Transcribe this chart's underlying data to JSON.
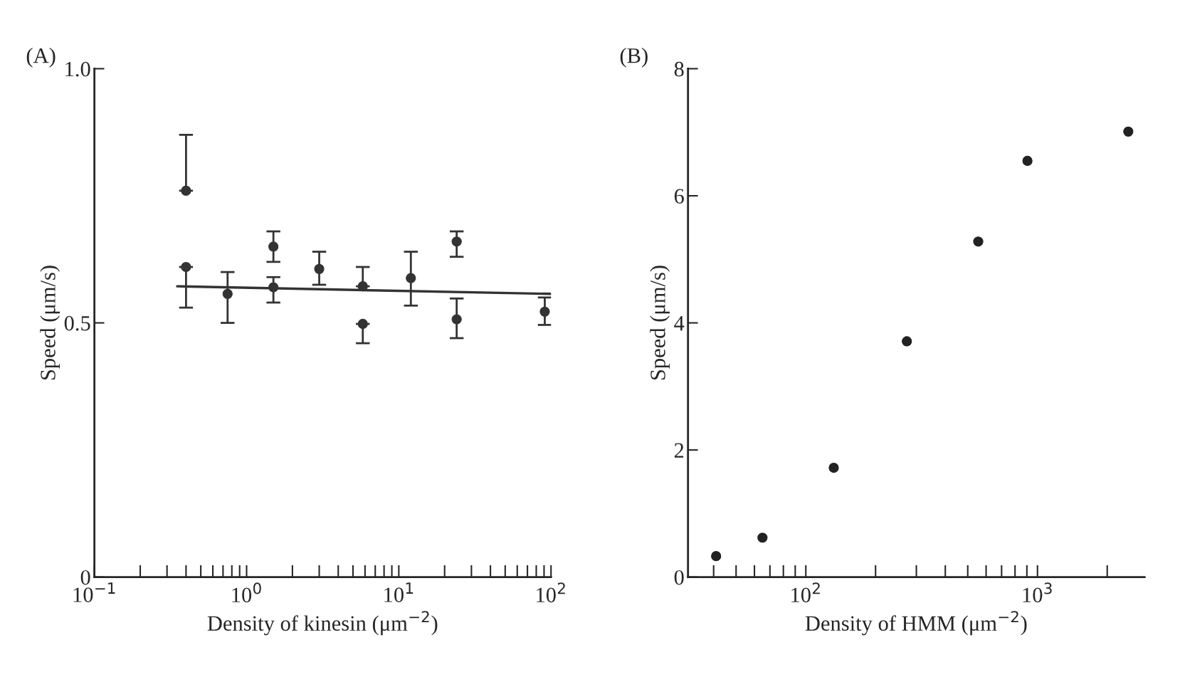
{
  "chart_data": [
    {
      "type": "scatter",
      "title": "(A)",
      "xlabel": "Density of kinesin (μm$^{−2}$)",
      "ylabel": "Speed (μm/s)",
      "log": "x",
      "grid": false,
      "xlim": [
        0.1,
        100
      ],
      "ylim": [
        0,
        1.0
      ],
      "xticks": [
        {
          "value": 0.1,
          "label": "10$^{−1}$"
        },
        {
          "value": 1,
          "label": "10$^{0}$"
        },
        {
          "value": 10,
          "label": "10$^{1}$"
        },
        {
          "value": 100,
          "label": "10$^{2}$"
        }
      ],
      "yticks": [
        0,
        0.5,
        {
          "value": 1.0,
          "label": "1.0"
        }
      ],
      "series": [
        {
          "type": "scatter",
          "marker": "circle",
          "color": "#333333",
          "x": [
            0.4,
            0.4,
            0.75,
            1.5,
            1.5,
            3.0,
            5.8,
            5.8,
            12,
            24,
            24,
            91
          ],
          "values": [
            0.76,
            0.61,
            0.557,
            0.65,
            0.57,
            0.606,
            0.572,
            0.498,
            0.588,
            0.66,
            0.507,
            0.522
          ],
          "errors": [
            [
              0.76,
              0.87
            ],
            [
              0.53,
              0.61
            ],
            [
              0.5,
              0.6
            ],
            [
              0.62,
              0.68
            ],
            [
              0.54,
              0.59
            ],
            [
              0.575,
              0.64
            ],
            [
              0.572,
              0.61
            ],
            [
              0.46,
              0.498
            ],
            [
              0.534,
              0.64
            ],
            [
              0.63,
              0.68
            ],
            [
              0.47,
              0.548
            ],
            [
              0.496,
              0.55
            ]
          ]
        },
        {
          "type": "line",
          "color": "#333333",
          "x": [
            0.35,
            100
          ],
          "values": [
            0.572,
            0.557
          ]
        }
      ]
    },
    {
      "type": "scatter",
      "title": "(B)",
      "xlabel": "Density of HMM (μm$^{−2}$)",
      "ylabel": "Speed (μm/s)",
      "log": "x",
      "grid": false,
      "xlim": [
        31,
        2900
      ],
      "ylim": [
        0,
        8
      ],
      "xticks": [
        {
          "value": 100,
          "label": "10$^{2}$"
        },
        {
          "value": 1000,
          "label": "10$^{3}$"
        }
      ],
      "yticks": [
        0,
        2,
        4,
        6,
        8
      ],
      "series": [
        {
          "type": "scatter",
          "marker": "circle",
          "color": "#222222",
          "x": [
            41,
            65,
            132,
            273,
            555,
            905,
            2466
          ],
          "values": [
            0.33,
            0.62,
            1.72,
            3.71,
            5.28,
            6.55,
            7.01
          ]
        }
      ]
    }
  ]
}
